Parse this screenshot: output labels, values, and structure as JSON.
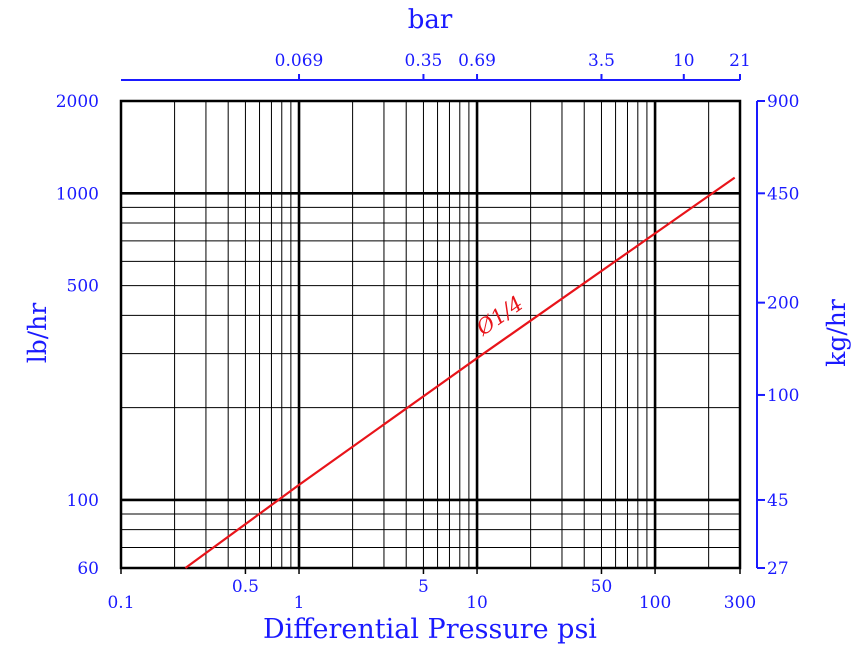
{
  "chart_data": {
    "type": "line",
    "title": "",
    "xlabel": "Differential Pressure psi",
    "ylabel": "lb/hr",
    "x_scale": "log",
    "y_scale": "log",
    "xlim": [
      0.1,
      300
    ],
    "ylim": [
      60,
      2000
    ],
    "grid": true,
    "x_ticks": [
      {
        "v": 0.1,
        "label": "0.1"
      },
      {
        "v": 0.5,
        "label": "0.5"
      },
      {
        "v": 1,
        "label": "1"
      },
      {
        "v": 5,
        "label": "5"
      },
      {
        "v": 10,
        "label": "10"
      },
      {
        "v": 50,
        "label": "50"
      },
      {
        "v": 100,
        "label": "100"
      },
      {
        "v": 300,
        "label": "300"
      }
    ],
    "y_ticks": [
      {
        "v": 60,
        "label": "60"
      },
      {
        "v": 100,
        "label": "100"
      },
      {
        "v": 500,
        "label": "500"
      },
      {
        "v": 1000,
        "label": "1000"
      },
      {
        "v": 2000,
        "label": "2000"
      }
    ],
    "secondary_x_axis": {
      "label": "bar",
      "ticks": [
        {
          "v": 1,
          "label": "0.069"
        },
        {
          "v": 5,
          "label": "0.35"
        },
        {
          "v": 10,
          "label": "0.69"
        },
        {
          "v": 50,
          "label": "3.5"
        },
        {
          "v": 145,
          "label": "10"
        },
        {
          "v": 300,
          "label": "21"
        }
      ]
    },
    "secondary_y_axis": {
      "label": "kg/hr",
      "ticks": [
        {
          "v": 60,
          "label": "27"
        },
        {
          "v": 100,
          "label": "45"
        },
        {
          "v": 220,
          "label": "100"
        },
        {
          "v": 440,
          "label": "200"
        },
        {
          "v": 1000,
          "label": "450"
        },
        {
          "v": 2000,
          "label": "900"
        }
      ]
    },
    "series": [
      {
        "name": "Ø1/4",
        "color": "#e8141a",
        "x": [
          0.23,
          1,
          10,
          100,
          280
        ],
        "y": [
          60,
          112,
          290,
          740,
          1125
        ]
      }
    ],
    "colors": {
      "axis_text": "#1a1aff",
      "grid": "#000000",
      "series": "#e8141a"
    }
  }
}
